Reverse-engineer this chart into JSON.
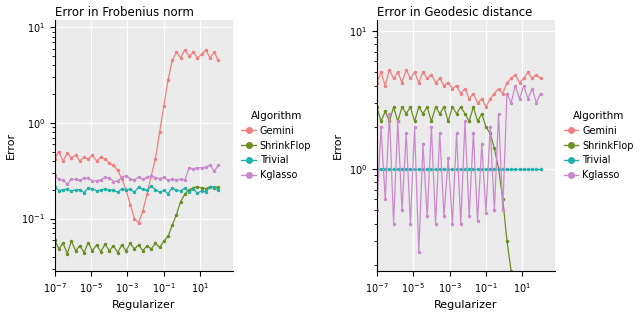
{
  "title1": "Error in Frobenius norm",
  "title2": "Error in Geodesic distance",
  "xlabel": "Regularizer",
  "ylabel": "Error",
  "colors": {
    "Gemini": "#F08080",
    "ShrinkFlop": "#6B8E23",
    "Trivial": "#20B2AA",
    "Kglasso": "#CC88CC"
  },
  "legend_title": "Algorithm",
  "bg_color": "#EBEBEB",
  "grid_color": "#FFFFFF",
  "figsize": [
    6.4,
    3.16
  ],
  "dpi": 100
}
